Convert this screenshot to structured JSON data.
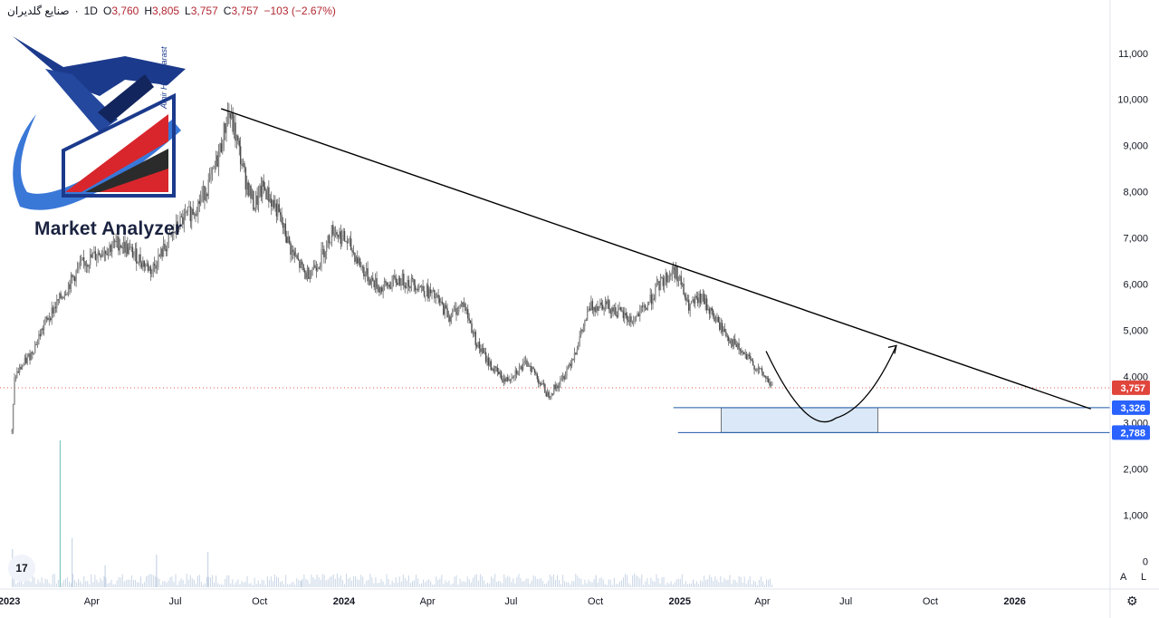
{
  "header": {
    "symbol": "صنایع گلدیران",
    "interval": "1D",
    "open_label": "O",
    "open": "3,760",
    "high_label": "H",
    "high": "3,805",
    "low_label": "L",
    "low": "3,757",
    "close_label": "C",
    "close": "3,757",
    "change": "−103 (−2.67%)"
  },
  "watermark": {
    "brand": "Market Analyzer",
    "author": "Amir HaghParast"
  },
  "price_tags": {
    "last": "3,757",
    "zone_top": "3,326",
    "zone_bottom": "2,788"
  },
  "controls": {
    "auto": "A",
    "log": "L",
    "tv_logo": "17"
  },
  "colors": {
    "last_price_tag": "#e0453c",
    "zone_tag": "#2962ff",
    "zone_line": "#1e5aa8",
    "zone_fill": "#dbe8f7",
    "candles": "#4a4a4a",
    "volume": "#c9d6e6",
    "volume_accent": "#7fc6c0",
    "trendline": "#000000"
  },
  "chart_data": {
    "type": "candlestick",
    "y_axis": {
      "range": [
        -600,
        11800
      ],
      "ticks": [
        0,
        1000,
        2000,
        3000,
        4000,
        5000,
        6000,
        7000,
        8000,
        9000,
        10000,
        11000
      ],
      "tick_labels": [
        "0",
        "1,000",
        "2,000",
        "3,000",
        "4,000",
        "5,000",
        "6,000",
        "7,000",
        "8,000",
        "9,000",
        "10,000",
        "11,000"
      ]
    },
    "x_axis": {
      "range": [
        "2022-12-22",
        "2026-04-15"
      ],
      "ticks": [
        "2023-01-01",
        "2023-04-01",
        "2023-07-01",
        "2023-10-01",
        "2024-01-01",
        "2024-04-01",
        "2024-07-01",
        "2024-10-01",
        "2025-01-01",
        "2025-04-01",
        "2025-07-01",
        "2025-10-01",
        "2026-01-01"
      ],
      "tick_labels": [
        "2023",
        "Apr",
        "Jul",
        "Oct",
        "2024",
        "Apr",
        "Jul",
        "Oct",
        "2025",
        "Apr",
        "Jul",
        "Oct",
        "2026"
      ]
    },
    "price_path": [
      [
        "2023-01-04",
        2800
      ],
      [
        "2023-01-07",
        4000
      ],
      [
        "2023-01-25",
        4500
      ],
      [
        "2023-02-10",
        5200
      ],
      [
        "2023-03-01",
        5800
      ],
      [
        "2023-03-20",
        6400
      ],
      [
        "2023-04-10",
        6700
      ],
      [
        "2023-05-01",
        6900
      ],
      [
        "2023-05-20",
        6600
      ],
      [
        "2023-06-05",
        6300
      ],
      [
        "2023-06-20",
        6800
      ],
      [
        "2023-07-05",
        7300
      ],
      [
        "2023-07-25",
        7700
      ],
      [
        "2023-08-10",
        8300
      ],
      [
        "2023-08-20",
        9000
      ],
      [
        "2023-08-28",
        9750
      ],
      [
        "2023-09-05",
        9200
      ],
      [
        "2023-09-15",
        8300
      ],
      [
        "2023-09-25",
        7700
      ],
      [
        "2023-10-05",
        8100
      ],
      [
        "2023-10-20",
        7600
      ],
      [
        "2023-11-05",
        6700
      ],
      [
        "2023-11-20",
        6200
      ],
      [
        "2023-12-05",
        6500
      ],
      [
        "2023-12-20",
        7200
      ],
      [
        "2024-01-05",
        6900
      ],
      [
        "2024-01-25",
        6200
      ],
      [
        "2024-02-10",
        5900
      ],
      [
        "2024-03-01",
        6100
      ],
      [
        "2024-03-20",
        6000
      ],
      [
        "2024-04-10",
        5700
      ],
      [
        "2024-04-25",
        5300
      ],
      [
        "2024-05-10",
        5600
      ],
      [
        "2024-05-25",
        4700
      ],
      [
        "2024-06-10",
        4200
      ],
      [
        "2024-06-25",
        3900
      ],
      [
        "2024-07-05",
        4100
      ],
      [
        "2024-07-20",
        4300
      ],
      [
        "2024-08-01",
        3900
      ],
      [
        "2024-08-10",
        3600
      ],
      [
        "2024-08-25",
        3900
      ],
      [
        "2024-09-10",
        4600
      ],
      [
        "2024-09-25",
        5500
      ],
      [
        "2024-10-10",
        5600
      ],
      [
        "2024-10-25",
        5400
      ],
      [
        "2024-11-10",
        5200
      ],
      [
        "2024-11-25",
        5500
      ],
      [
        "2024-12-10",
        6000
      ],
      [
        "2024-12-25",
        6300
      ],
      [
        "2024-12-30",
        6200
      ],
      [
        "2025-01-10",
        5500
      ],
      [
        "2025-01-25",
        5700
      ],
      [
        "2025-02-10",
        5200
      ],
      [
        "2025-02-25",
        4800
      ],
      [
        "2025-03-10",
        4500
      ],
      [
        "2025-03-25",
        4200
      ],
      [
        "2025-04-05",
        3960
      ],
      [
        "2025-04-12",
        3757
      ]
    ],
    "volume_spikes": [
      [
        "2023-01-04",
        700
      ],
      [
        "2023-02-25",
        2700
      ],
      [
        "2023-03-10",
        900
      ],
      [
        "2023-04-15",
        400
      ],
      [
        "2023-06-10",
        600
      ],
      [
        "2023-08-05",
        650
      ],
      [
        "2023-11-15",
        120
      ],
      [
        "2024-03-15",
        90
      ],
      [
        "2024-10-01",
        220
      ],
      [
        "2025-01-15",
        140
      ]
    ],
    "trendline": {
      "from": [
        "2023-08-20",
        9800
      ],
      "to": [
        "2026-03-25",
        3300
      ]
    },
    "demand_zone": {
      "top": 3326,
      "bottom": 2788,
      "from": "2025-02-15",
      "to": "2025-08-05"
    },
    "zone_lines": [
      {
        "value": 3326,
        "from": "2024-12-25"
      },
      {
        "value": 2788,
        "from": "2024-12-30"
      }
    ],
    "projection": [
      [
        "2025-04-05",
        4550
      ],
      [
        "2025-05-20",
        3450
      ],
      [
        "2025-06-20",
        3100
      ],
      [
        "2025-07-25",
        3500
      ],
      [
        "2025-08-25",
        4670
      ]
    ],
    "last_price": 3757
  }
}
